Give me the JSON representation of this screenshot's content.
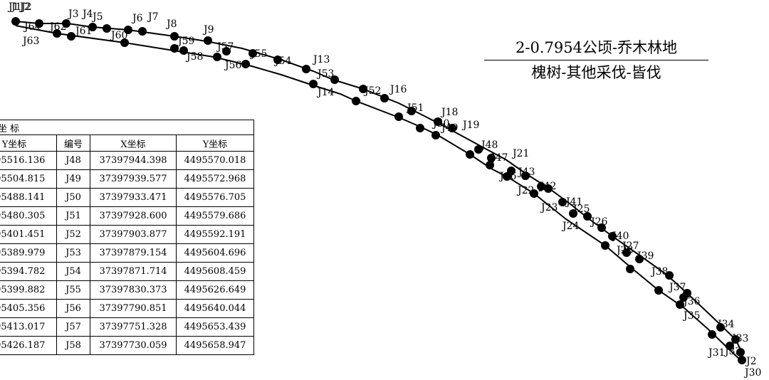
{
  "title": {
    "line1": "2-0.7954公顷-乔木林地",
    "line2": "槐树-其他采伐-皆伐"
  },
  "table": {
    "caption": "坐 标",
    "headers": [
      "Y坐标",
      "编号",
      "X坐标",
      "Y坐标"
    ],
    "rows": [
      [
        "4495516.136",
        "J48",
        "37397944.398",
        "4495570.018"
      ],
      [
        "4495504.815",
        "J49",
        "37397939.577",
        "4495572.968"
      ],
      [
        "4495488.141",
        "J50",
        "37397933.471",
        "4495576.705"
      ],
      [
        "4495480.305",
        "J51",
        "37397928.600",
        "4495579.686"
      ],
      [
        "4495401.451",
        "J52",
        "37397903.877",
        "4495592.191"
      ],
      [
        "4495389.979",
        "J53",
        "37397879.154",
        "4495604.696"
      ],
      [
        "4495394.782",
        "J54",
        "37397871.714",
        "4495608.459"
      ],
      [
        "4495399.882",
        "J55",
        "37397830.373",
        "4495626.649"
      ],
      [
        "4495405.356",
        "J56",
        "37397790.851",
        "4495640.044"
      ],
      [
        "4495413.017",
        "J57",
        "37397751.328",
        "4495653.439"
      ],
      [
        "4495426.187",
        "J58",
        "37397730.059",
        "4495658.947"
      ]
    ]
  },
  "points": [
    {
      "label": "J1"
    },
    {
      "label": "J2"
    },
    {
      "label": "J3"
    },
    {
      "label": "J4"
    },
    {
      "label": "J5"
    },
    {
      "label": "J6"
    },
    {
      "label": "J7"
    },
    {
      "label": "J8"
    },
    {
      "label": "J9"
    },
    {
      "label": "J13"
    },
    {
      "label": "J14"
    },
    {
      "label": "J16"
    },
    {
      "label": "J18"
    },
    {
      "label": "J19"
    },
    {
      "label": "J21"
    },
    {
      "label": "J22"
    },
    {
      "label": "J23"
    },
    {
      "label": "J24"
    },
    {
      "label": "J26"
    },
    {
      "label": "J28"
    },
    {
      "label": "J30"
    },
    {
      "label": "J31"
    },
    {
      "label": "J33"
    },
    {
      "label": "J34"
    },
    {
      "label": "J35"
    },
    {
      "label": "J36"
    },
    {
      "label": "J37"
    },
    {
      "label": "J38"
    },
    {
      "label": "J39"
    },
    {
      "label": "J40"
    },
    {
      "label": "J41"
    },
    {
      "label": "J42"
    },
    {
      "label": "J43"
    },
    {
      "label": "J48"
    },
    {
      "label": "J49"
    },
    {
      "label": "J50"
    },
    {
      "label": "J51"
    },
    {
      "label": "J52"
    },
    {
      "label": "J53"
    },
    {
      "label": "J54"
    },
    {
      "label": "J55"
    },
    {
      "label": "J56"
    },
    {
      "label": "J57"
    },
    {
      "label": "J58"
    },
    {
      "label": "J59"
    },
    {
      "label": "J60"
    },
    {
      "label": "J61"
    },
    {
      "label": "J62"
    },
    {
      "label": "J63"
    },
    {
      "label": "J64"
    }
  ],
  "partial_labels": [
    "J1",
    "J2",
    "J2",
    "J47",
    "J46",
    "J32",
    "J25",
    "J27"
  ]
}
